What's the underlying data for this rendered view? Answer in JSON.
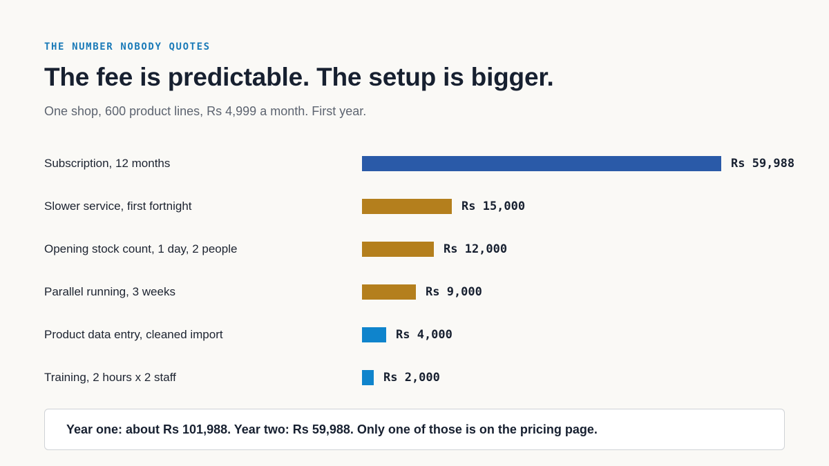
{
  "header": {
    "eyebrow": "THE NUMBER NOBODY QUOTES",
    "title": "The fee is predictable. The setup is bigger.",
    "subtitle": "One shop, 600 product lines, Rs 4,999 a month. First year."
  },
  "chart_data": {
    "type": "bar",
    "orientation": "horizontal",
    "xlim": [
      0,
      59988
    ],
    "categories": [
      "Subscription, 12 months",
      "Slower service, first fortnight",
      "Opening stock count, 1 day, 2 people",
      "Parallel running, 3 weeks",
      "Product data entry, cleaned import",
      "Training, 2 hours x 2 staff"
    ],
    "values": [
      59988,
      15000,
      12000,
      9000,
      4000,
      2000
    ],
    "value_labels": [
      "Rs 59,988",
      "Rs 15,000",
      "Rs 12,000",
      "Rs 9,000",
      "Rs 4,000",
      "Rs 2,000"
    ],
    "colors": [
      "#2a5aa8",
      "#b47f1d",
      "#b47f1d",
      "#b47f1d",
      "#0f84cc",
      "#0f84cc"
    ],
    "grid": false
  },
  "callout": {
    "text": "Year one: about Rs 101,988. Year two: Rs 59,988. Only one of those is on the pricing page."
  }
}
